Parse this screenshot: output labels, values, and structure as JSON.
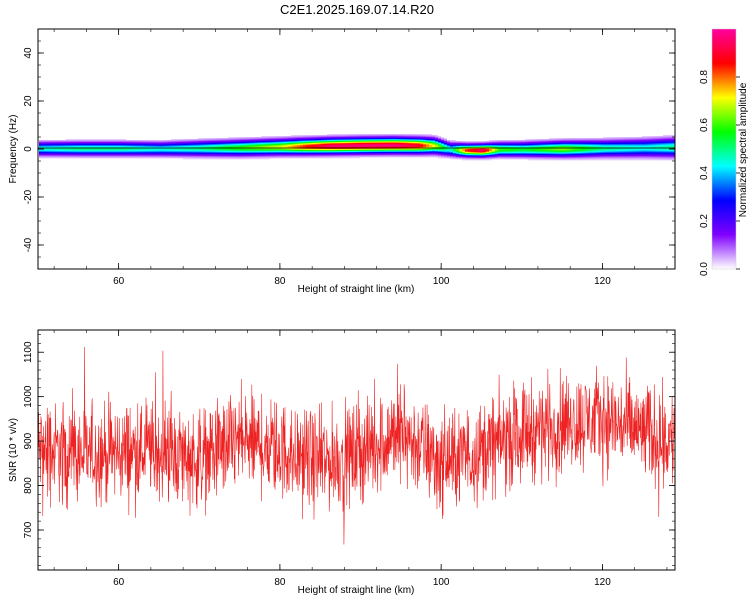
{
  "title": "C2E1.2025.169.07.14.R20",
  "chart_data": [
    {
      "type": "heatmap",
      "xlabel": "Height of straight line (km)",
      "ylabel": "Frequency (Hz)",
      "xlim": [
        50,
        129
      ],
      "ylim": [
        -50,
        50
      ],
      "xticks": [
        60,
        80,
        100,
        120
      ],
      "yticks": [
        -40,
        -20,
        0,
        20,
        40
      ],
      "xtick_labels": [
        "60",
        "80",
        "100",
        "120"
      ],
      "ytick_labels": [
        "-40",
        "-20",
        "0",
        "20",
        "40"
      ],
      "colorbar": {
        "label": "Normalized spectral amplitude",
        "range": [
          0,
          1
        ],
        "ticks": [
          0.0,
          0.2,
          0.4,
          0.6,
          0.8
        ],
        "tick_labels": [
          "0.0",
          "0.2",
          "0.4",
          "0.6",
          "0.8"
        ],
        "colormap": [
          "#ffffff",
          "#8000ff",
          "#0000ff",
          "#00ffff",
          "#00ff00",
          "#ffff00",
          "#ff0000",
          "#ff00a0"
        ]
      },
      "band_profile": {
        "x": [
          50,
          55,
          60,
          65,
          70,
          75,
          80,
          83,
          86,
          90,
          94,
          97,
          99,
          101,
          103,
          105,
          107,
          110,
          115,
          120,
          125,
          129
        ],
        "center_hz": [
          0.3,
          0.3,
          0.3,
          0.2,
          0.4,
          0.6,
          1.0,
          1.2,
          1.4,
          1.6,
          1.7,
          1.6,
          1.5,
          0.0,
          -0.4,
          -0.4,
          0.0,
          0.0,
          0.2,
          0.4,
          0.6,
          0.8
        ],
        "peak_amplitude": [
          0.45,
          0.5,
          0.5,
          0.45,
          0.5,
          0.6,
          0.7,
          0.85,
          0.95,
          0.97,
          0.97,
          0.9,
          0.7,
          0.45,
          0.85,
          0.95,
          0.6,
          0.55,
          0.65,
          0.5,
          0.45,
          0.5
        ],
        "halfwidth_hz": [
          2.2,
          2.2,
          2.2,
          2.2,
          2.4,
          2.5,
          2.5,
          2.5,
          2.5,
          2.5,
          2.5,
          2.5,
          2.5,
          2.2,
          2.0,
          2.0,
          2.2,
          2.3,
          2.5,
          2.6,
          2.8,
          3.0
        ]
      }
    },
    {
      "type": "line",
      "xlabel": "Height of straight line (km)",
      "ylabel": "SNR (10 * v/v)",
      "xlim": [
        50,
        129
      ],
      "ylim": [
        610,
        1150
      ],
      "xticks": [
        60,
        80,
        100,
        120
      ],
      "yticks": [
        700,
        800,
        900,
        1000,
        1100
      ],
      "xtick_labels": [
        "60",
        "80",
        "100",
        "120"
      ],
      "ytick_labels": [
        "700",
        "800",
        "900",
        "1000",
        "1100"
      ],
      "series": [
        {
          "color": "#ee2222",
          "x": [
            50,
            55,
            60,
            65,
            70,
            75,
            80,
            85,
            90,
            95,
            100,
            105,
            110,
            115,
            120,
            125,
            129
          ],
          "y": [
            880,
            870,
            875,
            880,
            860,
            900,
            880,
            850,
            875,
            920,
            850,
            880,
            920,
            940,
            950,
            920,
            900
          ],
          "noise_amplitude": 55,
          "samples": 2000
        }
      ]
    }
  ]
}
